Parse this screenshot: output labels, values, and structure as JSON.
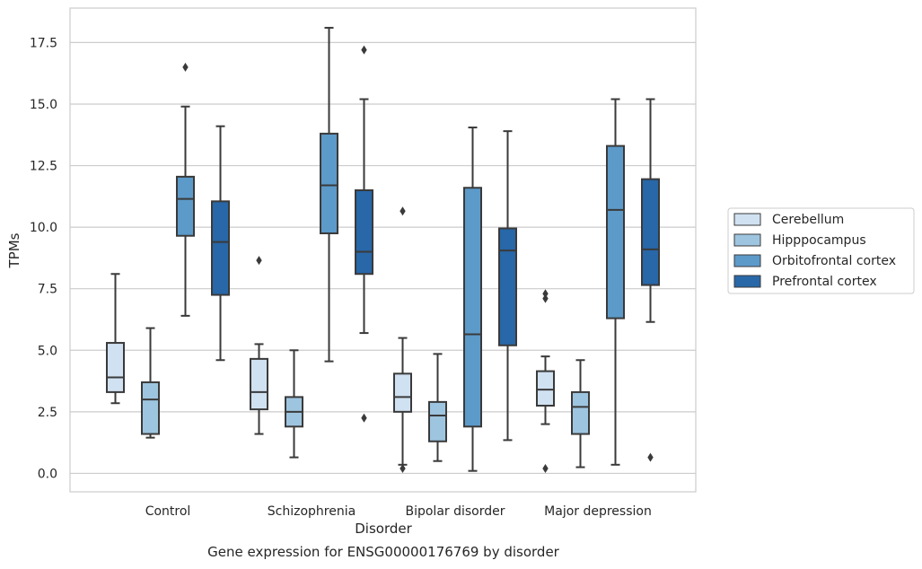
{
  "caption": "Gene expression for ENSG00000176769 by disorder",
  "chart_data": {
    "type": "box",
    "title": "",
    "xlabel": "Disorder",
    "ylabel": "TPMs",
    "ylim": [
      -0.75,
      18.9
    ],
    "yticks": [
      0.0,
      2.5,
      5.0,
      7.5,
      10.0,
      12.5,
      15.0,
      17.5
    ],
    "ytick_labels": [
      "0.0",
      "2.5",
      "5.0",
      "7.5",
      "10.0",
      "12.5",
      "15.0",
      "17.5"
    ],
    "grid": "horizontal",
    "legend_position": "right",
    "categories": [
      "Control",
      "Schizophrenia",
      "Bipolar disorder",
      "Major depression"
    ],
    "series": [
      {
        "name": "Cerebellum",
        "color": "#d0e1f1",
        "boxes": [
          {
            "whisker_low": 2.85,
            "q1": 3.3,
            "median": 3.9,
            "q3": 5.3,
            "whisker_high": 8.1,
            "outliers": []
          },
          {
            "whisker_low": 1.6,
            "q1": 2.6,
            "median": 3.3,
            "q3": 4.65,
            "whisker_high": 5.25,
            "outliers": [
              8.65
            ]
          },
          {
            "whisker_low": 0.35,
            "q1": 2.5,
            "median": 3.1,
            "q3": 4.05,
            "whisker_high": 5.5,
            "outliers": [
              0.2,
              10.65
            ]
          },
          {
            "whisker_low": 2.0,
            "q1": 2.75,
            "median": 3.4,
            "q3": 4.15,
            "whisker_high": 4.75,
            "outliers": [
              0.2,
              7.1,
              7.3
            ]
          }
        ]
      },
      {
        "name": "Hipppocampus",
        "color": "#9ec5df",
        "boxes": [
          {
            "whisker_low": 1.45,
            "q1": 1.6,
            "median": 3.0,
            "q3": 3.7,
            "whisker_high": 5.9,
            "outliers": []
          },
          {
            "whisker_low": 0.65,
            "q1": 1.9,
            "median": 2.5,
            "q3": 3.1,
            "whisker_high": 5.0,
            "outliers": []
          },
          {
            "whisker_low": 0.5,
            "q1": 1.3,
            "median": 2.35,
            "q3": 2.9,
            "whisker_high": 4.85,
            "outliers": []
          },
          {
            "whisker_low": 0.25,
            "q1": 1.6,
            "median": 2.7,
            "q3": 3.3,
            "whisker_high": 4.6,
            "outliers": []
          }
        ]
      },
      {
        "name": "Orbitofrontal cortex",
        "color": "#5c9ac9",
        "boxes": [
          {
            "whisker_low": 6.4,
            "q1": 9.65,
            "median": 11.15,
            "q3": 12.05,
            "whisker_high": 14.9,
            "outliers": [
              16.5
            ]
          },
          {
            "whisker_low": 4.55,
            "q1": 9.75,
            "median": 11.7,
            "q3": 13.8,
            "whisker_high": 18.1,
            "outliers": []
          },
          {
            "whisker_low": 0.1,
            "q1": 1.9,
            "median": 5.65,
            "q3": 11.6,
            "whisker_high": 14.05,
            "outliers": []
          },
          {
            "whisker_low": 0.35,
            "q1": 6.3,
            "median": 10.7,
            "q3": 13.3,
            "whisker_high": 15.2,
            "outliers": []
          }
        ]
      },
      {
        "name": "Prefrontal cortex",
        "color": "#2867a8",
        "boxes": [
          {
            "whisker_low": 4.6,
            "q1": 7.25,
            "median": 9.4,
            "q3": 11.05,
            "whisker_high": 14.1,
            "outliers": []
          },
          {
            "whisker_low": 5.7,
            "q1": 8.1,
            "median": 9.0,
            "q3": 11.5,
            "whisker_high": 15.2,
            "outliers": [
              2.25,
              17.2
            ]
          },
          {
            "whisker_low": 1.35,
            "q1": 5.2,
            "median": 9.05,
            "q3": 9.95,
            "whisker_high": 13.9,
            "outliers": []
          },
          {
            "whisker_low": 6.15,
            "q1": 7.65,
            "median": 9.1,
            "q3": 11.95,
            "whisker_high": 15.2,
            "outliers": [
              0.65
            ]
          }
        ]
      }
    ]
  },
  "colors": {
    "box_edge": "#3a3a3a",
    "grid": "#cccccc",
    "frame": "#cccccc"
  }
}
